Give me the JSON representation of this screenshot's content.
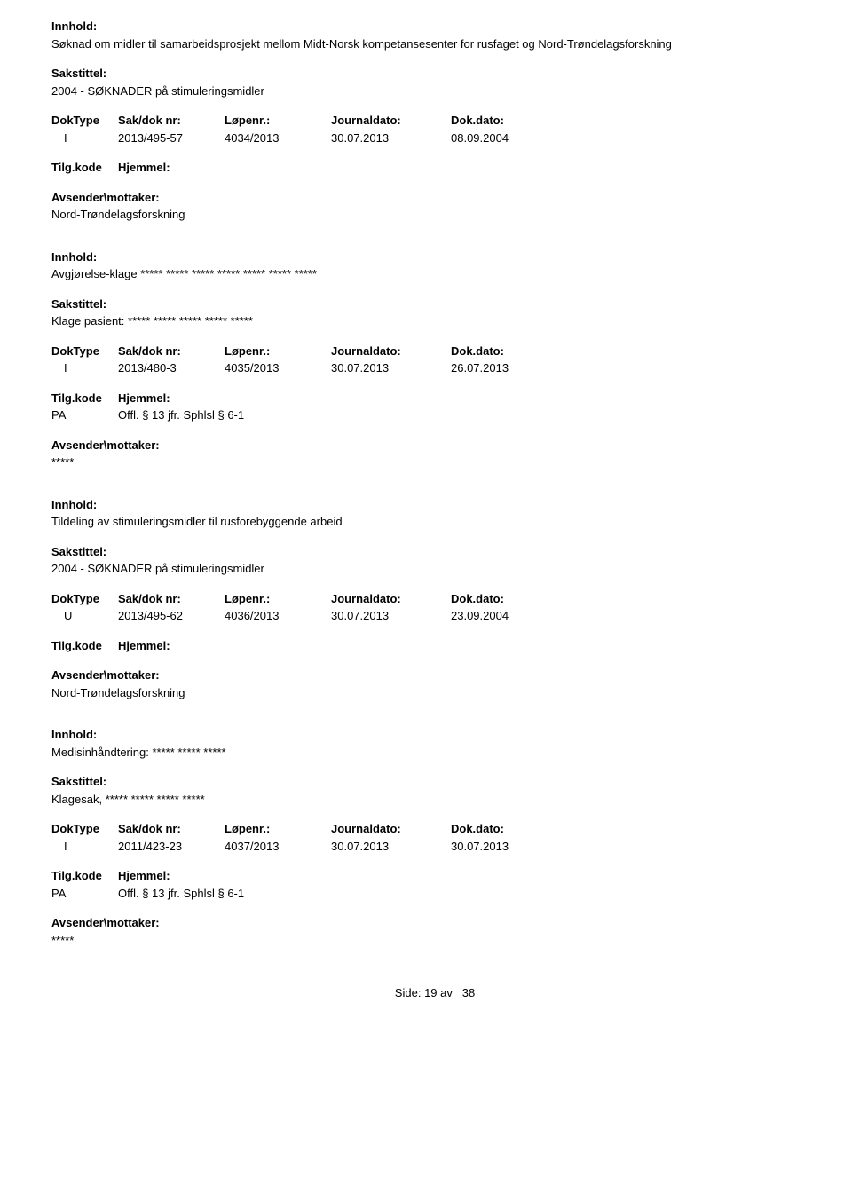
{
  "labels": {
    "innhold": "Innhold:",
    "sakstittel": "Sakstittel:",
    "doktype": "DokType",
    "sakdok": "Sak/dok nr:",
    "lopenr": "Løpenr.:",
    "journaldato": "Journaldato:",
    "dokdato": "Dok.dato:",
    "tilgkode": "Tilg.kode",
    "hjemmel": "Hjemmel:",
    "avsender": "Avsender\\mottaker:",
    "side": "Side:",
    "av": "av"
  },
  "footer": {
    "page": "19",
    "total": "38"
  },
  "records": [
    {
      "innhold": "Søknad om midler til samarbeidsprosjekt mellom Midt-Norsk kompetansesenter for rusfaget og Nord-Trøndelagsforskning",
      "sakstittel": "2004 - SØKNADER på stimuleringsmidler",
      "doktype": "I",
      "sakdok": "2013/495-57",
      "lopenr": "4034/2013",
      "journaldato": "30.07.2013",
      "dokdato": "08.09.2004",
      "tilgkode": "",
      "hjemmel": "",
      "avsender": "Nord-Trøndelagsforskning"
    },
    {
      "innhold": "Avgjørelse-klage ***** ***** ***** ***** ***** ***** *****",
      "sakstittel": "Klage pasient: ***** ***** ***** ***** *****",
      "doktype": "I",
      "sakdok": "2013/480-3",
      "lopenr": "4035/2013",
      "journaldato": "30.07.2013",
      "dokdato": "26.07.2013",
      "tilgkode": "PA",
      "hjemmel": "Offl. § 13 jfr. Sphlsl  § 6-1",
      "avsender": "*****"
    },
    {
      "innhold": "Tildeling av stimuleringsmidler til rusforebyggende arbeid",
      "sakstittel": "2004 - SØKNADER på stimuleringsmidler",
      "doktype": "U",
      "sakdok": "2013/495-62",
      "lopenr": "4036/2013",
      "journaldato": "30.07.2013",
      "dokdato": "23.09.2004",
      "tilgkode": "",
      "hjemmel": "",
      "avsender": "Nord-Trøndelagsforskning"
    },
    {
      "innhold": "Medisinhåndtering: ***** ***** *****",
      "sakstittel": "Klagesak, ***** ***** ***** *****",
      "doktype": "I",
      "sakdok": "2011/423-23",
      "lopenr": "4037/2013",
      "journaldato": "30.07.2013",
      "dokdato": "30.07.2013",
      "tilgkode": "PA",
      "hjemmel": "Offl. § 13 jfr. Sphlsl  § 6-1",
      "avsender": "*****"
    }
  ]
}
